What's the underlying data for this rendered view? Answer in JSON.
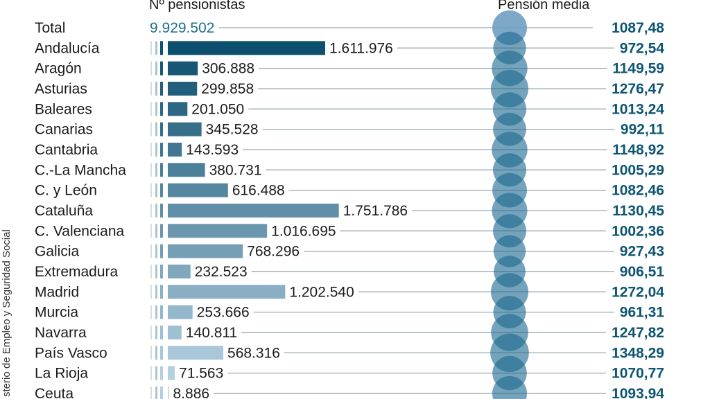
{
  "chart_data": {
    "type": "bar",
    "headers": {
      "pensioners": "Nº pensionistas",
      "pension": "Pensión media"
    },
    "source": "sterio de Empleo y Seguridad Social",
    "total": {
      "label": "Total",
      "pensioners": 9929502,
      "pensioners_text": "9.929.502",
      "pension": 1087.48,
      "pension_text": "1087,48"
    },
    "categories": [
      "Andalucía",
      "Aragón",
      "Asturias",
      "Baleares",
      "Canarias",
      "Cantabria",
      "C.-La Mancha",
      "C. y León",
      "Cataluña",
      "C. Valenciana",
      "Galicia",
      "Extremadura",
      "Madrid",
      "Murcia",
      "Navarra",
      "País Vasco",
      "La Rioja",
      "Ceuta"
    ],
    "series": [
      {
        "name": "Nº pensionistas",
        "values": [
          1611976,
          306888,
          299858,
          201050,
          345528,
          143593,
          380731,
          616488,
          1751786,
          1016695,
          768296,
          232523,
          1202540,
          253666,
          140811,
          568316,
          71563,
          8886
        ],
        "labels": [
          "1.611.976",
          "306.888",
          "299.858",
          "201.050",
          "345.528",
          "143.593",
          "380.731",
          "616.488",
          "1.751.786",
          "1.016.695",
          "768.296",
          "232.523",
          "1.202.540",
          "253.666",
          "140.811",
          "568.316",
          "71.563",
          "8.886"
        ]
      },
      {
        "name": "Pensión media",
        "values": [
          972.54,
          1149.59,
          1276.47,
          1013.24,
          992.11,
          1148.92,
          1005.29,
          1082.46,
          1130.45,
          1002.36,
          927.43,
          906.51,
          1272.04,
          961.31,
          1247.82,
          1348.29,
          1070.77,
          1093.94
        ],
        "labels": [
          "972,54",
          "1149,59",
          "1276,47",
          "1013,24",
          "992,11",
          "1148,92",
          "1005,29",
          "1082,46",
          "1130,45",
          "1002,36",
          "927,43",
          "906,51",
          "1272,04",
          "961,31",
          "1247,82",
          "1348,29",
          "1070,77",
          "1093,94"
        ]
      }
    ],
    "colors": {
      "bar_dark": "#0d4f6e",
      "bar_light": "#b4cfe0",
      "circle": "#1f6a91",
      "total_circle": "#6f9fc1",
      "pension_text": "#0d5572",
      "total_text": "#1d6f8c",
      "line": "#9aa7ae"
    }
  }
}
